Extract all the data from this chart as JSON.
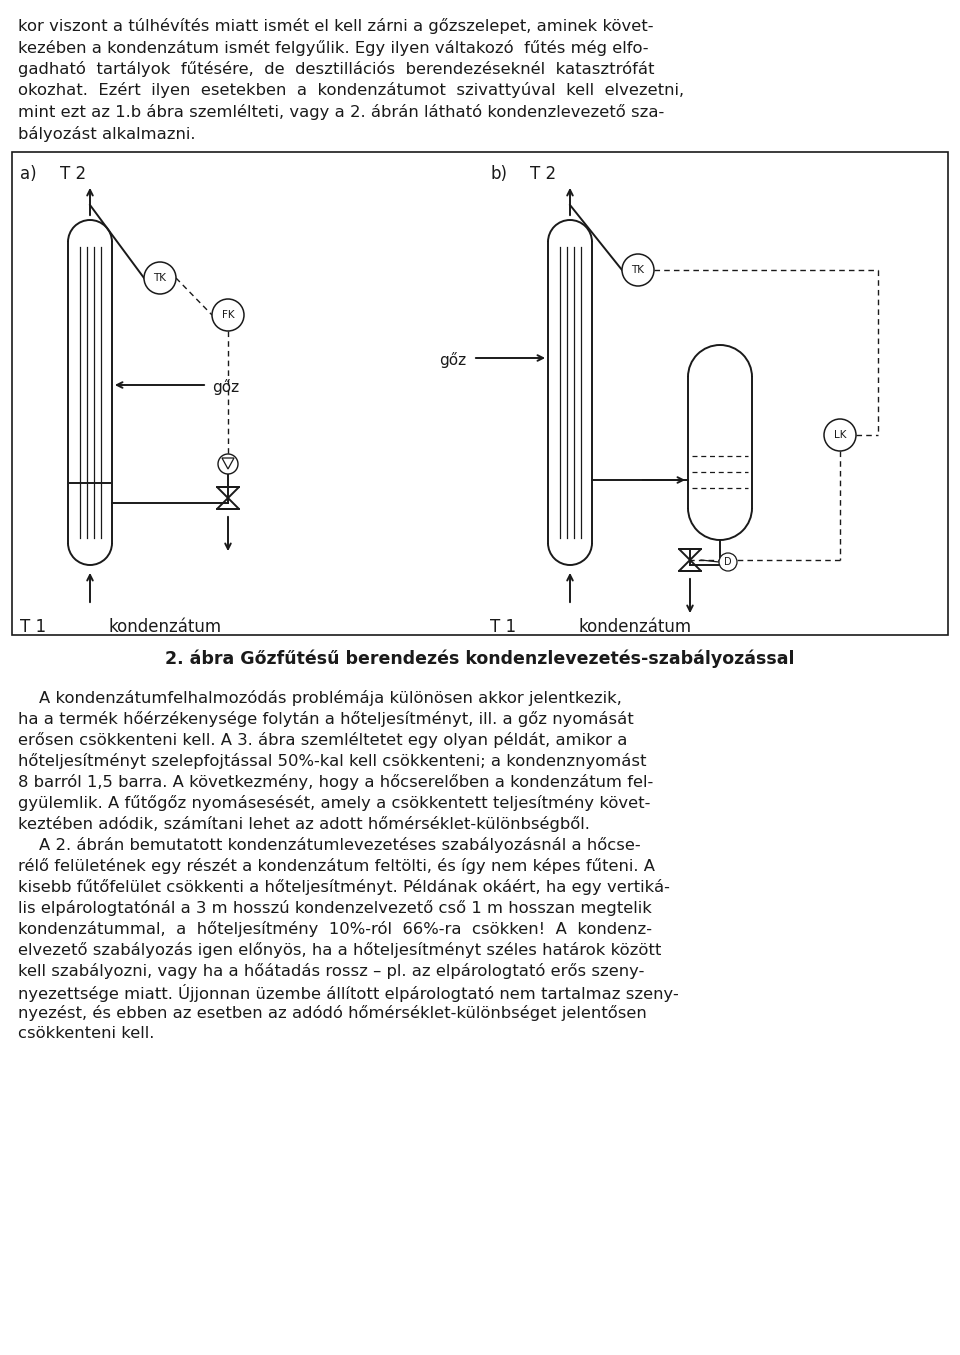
{
  "bg_color": "#ffffff",
  "text_color": "#1a1a1a",
  "line_color": "#1a1a1a",
  "fig_width": 9.6,
  "fig_height": 13.55,
  "top_text_lines": [
    "kor viszont a túlhévítés miatt ismét el kell zárni a gőzszelepet, aminek követ-",
    "kezében a kondenzátum ismét felgyűlik. Egy ilyen váltakozó  fűtés még elfo-",
    "gadható  tartályok  fűtésére,  de  desztillációs  berendezéseknél  katasztrófát",
    "okozhat.  Ezért  ilyen  esetekben  a  kondenzátumot  szivattyúval  kell  elvezetni,",
    "mint ezt az 1.b ábra szemlélteti, vagy a 2. ábrán látható kondenzlevezető sza-",
    "bályozást alkalmazni."
  ],
  "caption": "2. ábra Gőzfűtésű berendezés kondenzlevezetés-szabályozással",
  "bottom_text_lines": [
    "    A kondenzátumfelhalmozódás problémája különösen akkor jelentkezik,",
    "ha a termék hőérzékenysége folytán a hőteljesítményt, ill. a gőz nyomását",
    "erősen csökkenteni kell. A 3. ábra szemléltetet egy olyan példát, amikor a",
    "hőteljesítményt szelepfojtással 50%-kal kell csökkenteni; a kondenznyomást",
    "8 barról 1,5 barra. A következmény, hogy a hőcserelőben a kondenzátum fel-",
    "gyülemlik. A fűtőgőz nyomásesését, amely a csökkentett teljesítmény követ-",
    "keztében adódik, számítani lehet az adott hőmérséklet-különbségből.",
    "    A 2. ábrán bemutatott kondenzátumlevezetéses szabályozásnál a hőcse-",
    "rélő felületének egy részét a kondenzátum feltölti, és így nem képes fűteni. A",
    "kisebb fűtőfelület csökkenti a hőteljesítményt. Példának okáért, ha egy vertiká-",
    "lis elpárologtatónál a 3 m hosszú kondenzelvezető cső 1 m hosszan megtelik",
    "kondenzátummal,  a  hőteljesítmény  10%-ról  66%-ra  csökken!  A  kondenz-",
    "elvezető szabályozás igen előnyös, ha a hőteljesítményt széles határok között",
    "kell szabályozni, vagy ha a hőátadás rossz – pl. az elpárologtató erős szeny-",
    "nyezettsége miatt. Újjonnan üzembe állított elpárologtató nem tartalmaz szeny-",
    "nyezést, és ebben az esetben az adódó hőmérséklet-különbséget jelentősen",
    "csökkenteni kell."
  ]
}
